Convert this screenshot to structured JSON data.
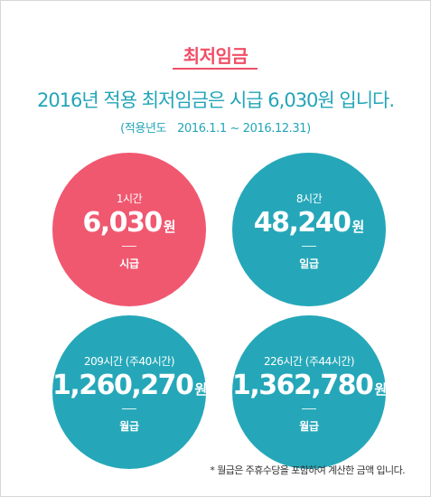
{
  "header": {
    "title": "최저임금",
    "headline": "2016년 적용 최저임금은 시급 6,030원 입니다.",
    "period_label": "(적용년도",
    "period_range": "2016.1.1 ~ 2016.12.31)"
  },
  "colors": {
    "accent_pink": "#ef4f67",
    "accent_teal": "#23a5b8",
    "circle_pink": "#f05870",
    "circle_teal": "#25a7b9"
  },
  "wages": [
    {
      "hours": "1시간",
      "amount": "6,030",
      "unit": "원",
      "type": "시급"
    },
    {
      "hours": "8시간",
      "amount": "48,240",
      "unit": "원",
      "type": "일급"
    },
    {
      "hours": "209시간 (주40시간)",
      "amount": "1,260,270",
      "unit": "원",
      "type": "월급"
    },
    {
      "hours": "226시간 (주44시간)",
      "amount": "1,362,780",
      "unit": "원",
      "type": "월급"
    }
  ],
  "footnote": "* 월급은 주휴수당을 포함하여 계산한 금액 입니다."
}
